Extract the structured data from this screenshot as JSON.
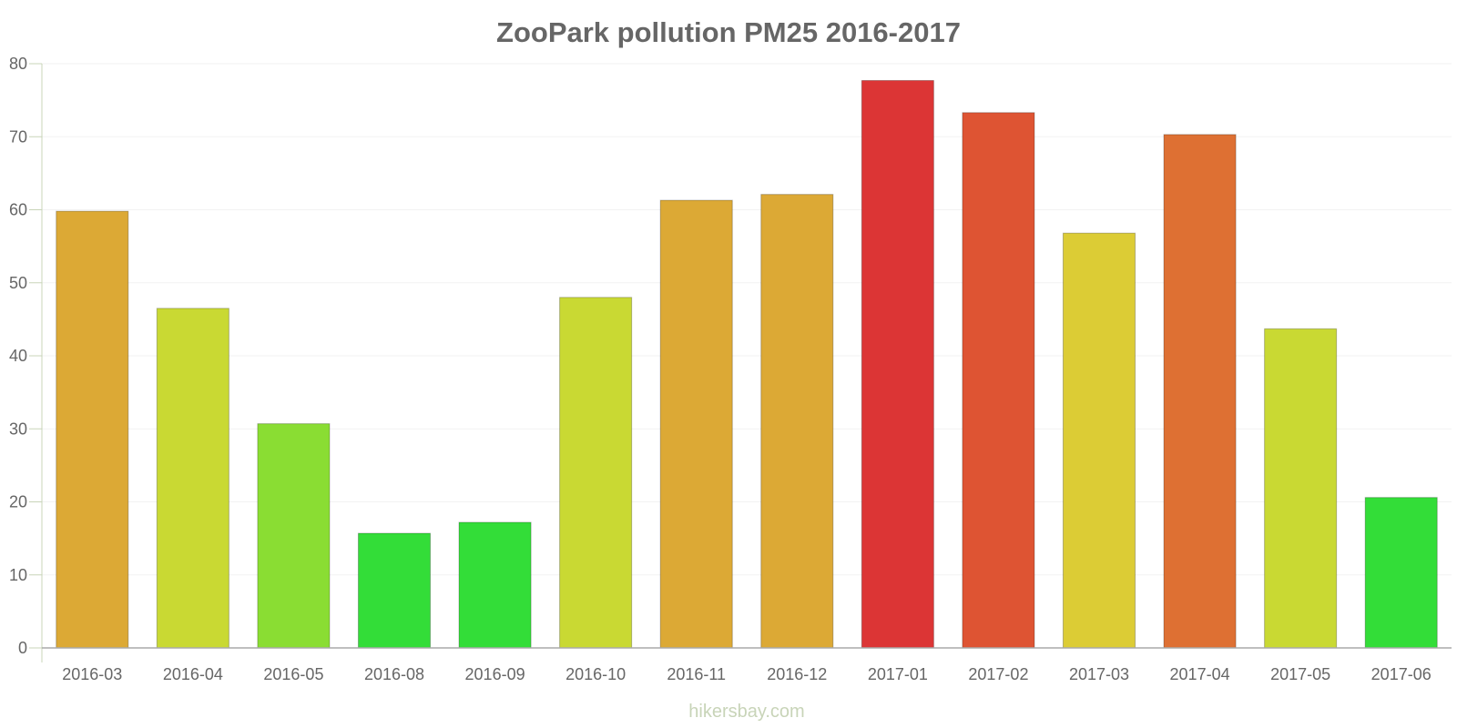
{
  "chart_data": {
    "type": "bar",
    "title": "ZooPark pollution PM25 2016-2017",
    "xlabel": "",
    "ylabel": "",
    "ylim": [
      0,
      80
    ],
    "yticks": [
      0,
      10,
      20,
      30,
      40,
      50,
      60,
      70,
      80
    ],
    "grid": true,
    "categories": [
      "2016-03",
      "2016-04",
      "2016-05",
      "2016-08",
      "2016-09",
      "2016-10",
      "2016-11",
      "2016-12",
      "2017-01",
      "2017-02",
      "2017-03",
      "2017-04",
      "2017-05",
      "2017-06"
    ],
    "values": [
      59.8,
      46.5,
      30.7,
      15.7,
      17.2,
      48.0,
      61.3,
      62.1,
      77.7,
      73.3,
      56.8,
      70.3,
      43.7,
      20.6
    ],
    "colors": [
      "#dca935",
      "#c9d933",
      "#8add33",
      "#33dd38",
      "#33dd38",
      "#c9d933",
      "#dca935",
      "#dca935",
      "#dc3535",
      "#de5433",
      "#dccc35",
      "#de7033",
      "#c9d933",
      "#33dd38"
    ]
  },
  "watermark": "hikersbay.com"
}
